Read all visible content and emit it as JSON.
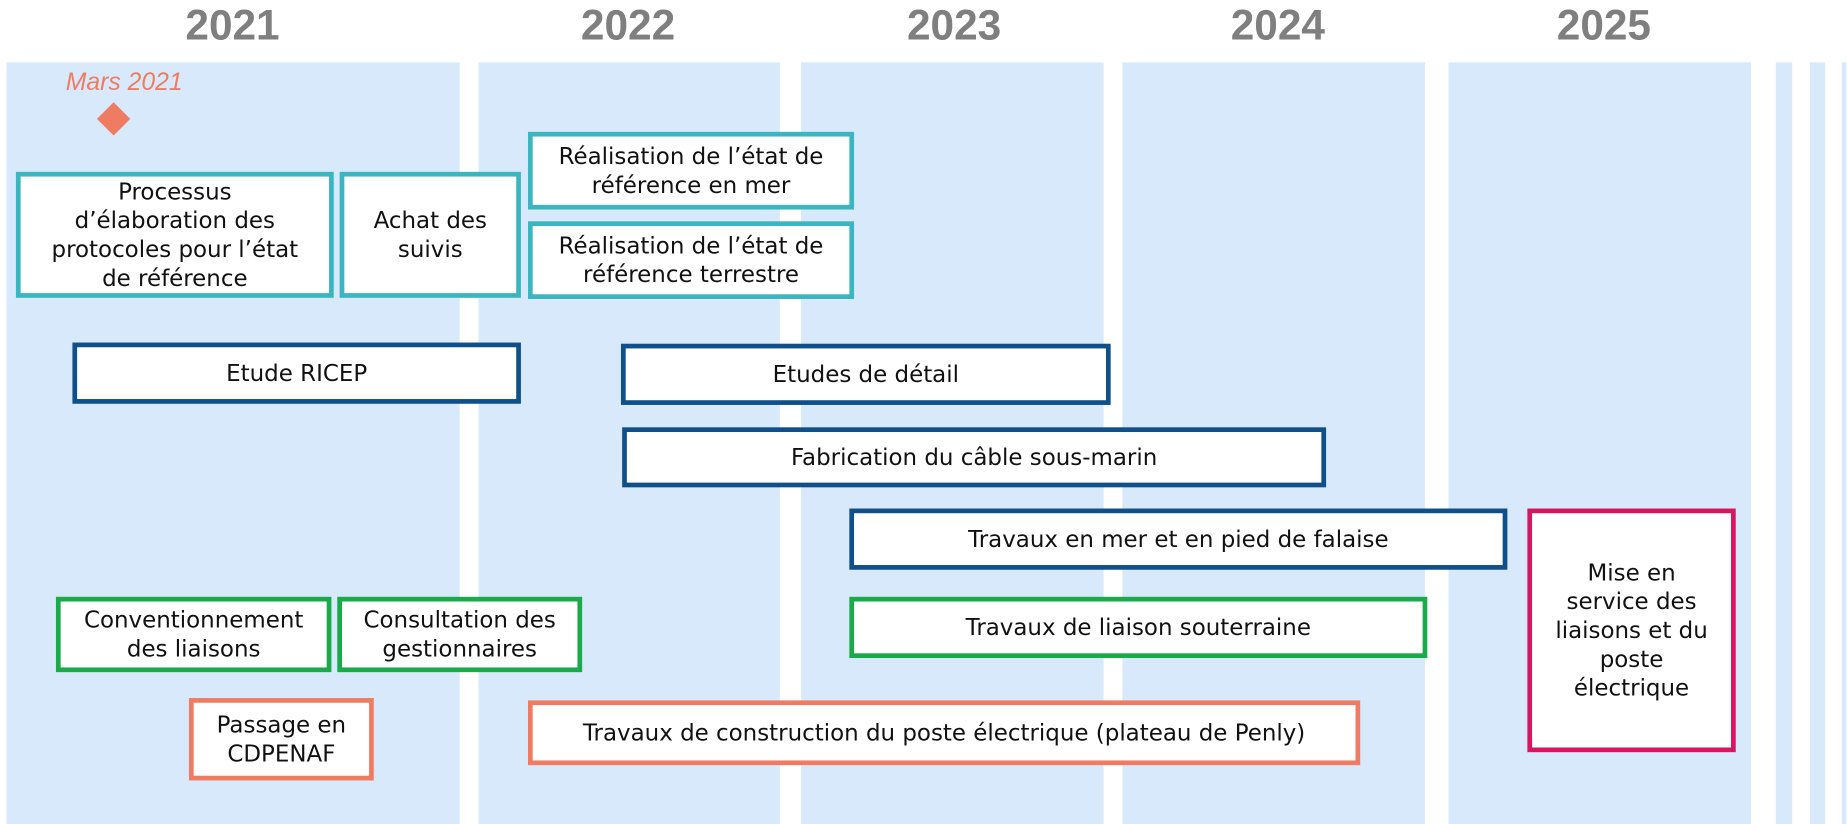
{
  "years": [
    "2021",
    "2022",
    "2023",
    "2024",
    "2025"
  ],
  "milestone": {
    "label": "Mars 2021"
  },
  "tasks": [
    {
      "lines": [
        "Processus",
        "d’élaboration des",
        "protocoles pour l’état",
        "de référence"
      ]
    },
    {
      "lines": [
        "Achat des",
        "suivis"
      ]
    },
    {
      "lines": [
        "Réalisation de l’état de",
        "référence en mer"
      ]
    },
    {
      "lines": [
        "Réalisation de l’état de",
        "référence terrestre"
      ]
    },
    {
      "lines": [
        "Etude RICEP"
      ]
    },
    {
      "lines": [
        "Etudes de détail"
      ]
    },
    {
      "lines": [
        "Fabrication du câble sous-marin"
      ]
    },
    {
      "lines": [
        "Travaux en mer et en pied de falaise"
      ]
    },
    {
      "lines": [
        "Mise en",
        "service des",
        "liaisons et du",
        "poste",
        "électrique"
      ]
    },
    {
      "lines": [
        "Conventionnement",
        "des liaisons"
      ]
    },
    {
      "lines": [
        "Consultation des",
        "gestionnaires"
      ]
    },
    {
      "lines": [
        "Travaux de liaison souterraine"
      ]
    },
    {
      "lines": [
        "Passage en",
        "CDPENAF"
      ]
    },
    {
      "lines": [
        "Travaux de construction du poste électrique (plateau de Penly)"
      ]
    }
  ]
}
